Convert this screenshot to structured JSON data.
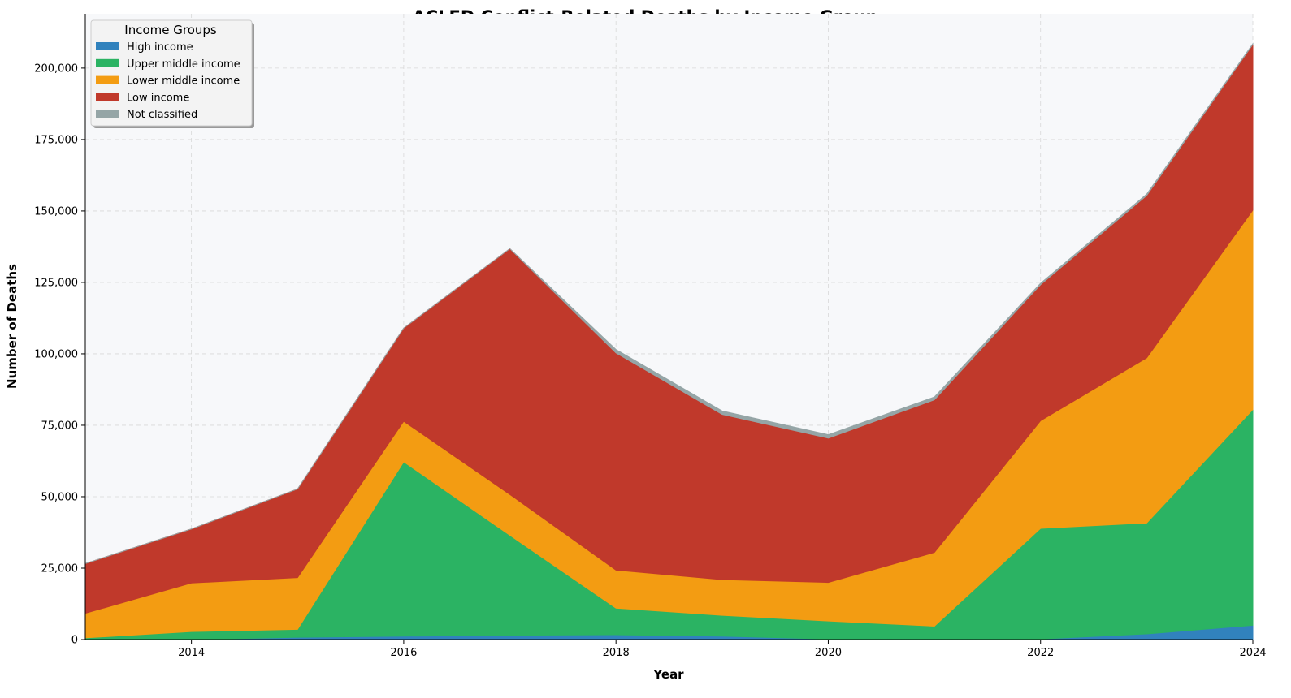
{
  "chart_data": {
    "type": "area",
    "stacked": true,
    "title": "ACLED Conflict-Related Deaths by Income Group",
    "xlabel": "Year",
    "ylabel": "Number of Deaths",
    "x": [
      2013,
      2014,
      2015,
      2016,
      2017,
      2018,
      2019,
      2020,
      2021,
      2022,
      2023,
      2024
    ],
    "xlim": [
      2013,
      2024
    ],
    "ylim": [
      0,
      219000
    ],
    "xticks": [
      2014,
      2016,
      2018,
      2020,
      2022,
      2024
    ],
    "yticks": [
      0,
      25000,
      50000,
      75000,
      100000,
      125000,
      150000,
      175000,
      200000
    ],
    "ytick_labels": [
      "0",
      "25,000",
      "50,000",
      "75,000",
      "100,000",
      "125,000",
      "150,000",
      "175,000",
      "200,000"
    ],
    "grid": true,
    "legend": {
      "title": "Income Groups",
      "placement": "top-left"
    },
    "series": [
      {
        "name": "High income",
        "color": "#3182bd",
        "values": [
          0,
          0,
          800,
          1200,
          1500,
          1700,
          1200,
          200,
          100,
          200,
          2000,
          5000
        ]
      },
      {
        "name": "Upper middle income",
        "color": "#2bb363",
        "values": [
          600,
          2800,
          2800,
          61000,
          35000,
          9300,
          7300,
          6300,
          4600,
          38700,
          38800,
          75500
        ]
      },
      {
        "name": "Lower middle income",
        "color": "#f39c12",
        "values": [
          8600,
          17000,
          18100,
          14200,
          14300,
          13300,
          12500,
          13500,
          25800,
          37700,
          57800,
          69800
        ]
      },
      {
        "name": "Low income",
        "color": "#c0392b",
        "values": [
          17400,
          18900,
          31000,
          32600,
          86000,
          76000,
          57800,
          50500,
          53400,
          47600,
          56800,
          58000
        ]
      },
      {
        "name": "Not classified",
        "color": "#95a5a6",
        "values": [
          0,
          0,
          0,
          0,
          0,
          1200,
          1200,
          1200,
          1000,
          500,
          500,
          200
        ]
      }
    ]
  }
}
